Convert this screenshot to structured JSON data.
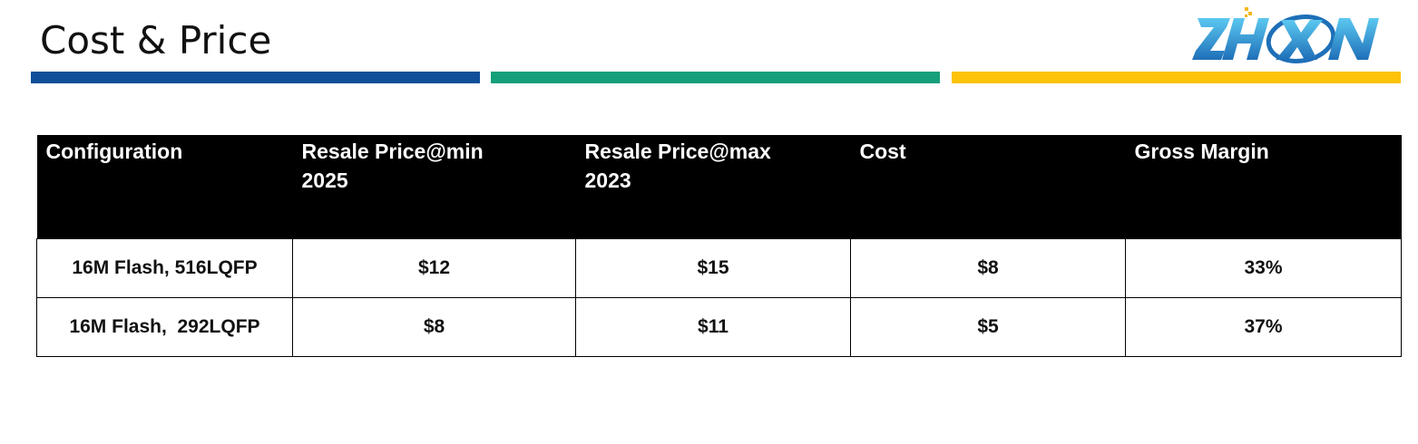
{
  "slide": {
    "title": "Cost & Price",
    "logo_text": "ZHXN",
    "accent_bars": [
      {
        "name": "blue",
        "color": "#0F4F99"
      },
      {
        "name": "green",
        "color": "#15A07A"
      },
      {
        "name": "yellow",
        "color": "#FDC20A"
      }
    ]
  },
  "table": {
    "headers": [
      "Configuration",
      "Resale Price@min\n2025",
      "Resale Price@max\n2023",
      "Cost",
      "Gross Margin"
    ],
    "rows": [
      {
        "configuration": "16M Flash, 516LQFP",
        "resale_min": "$12",
        "resale_max": "$15",
        "cost": "$8",
        "gross_margin": "33%"
      },
      {
        "configuration": "16M Flash,  292LQFP",
        "resale_min": "$8",
        "resale_max": "$11",
        "cost": "$5",
        "gross_margin": "37%"
      }
    ]
  }
}
